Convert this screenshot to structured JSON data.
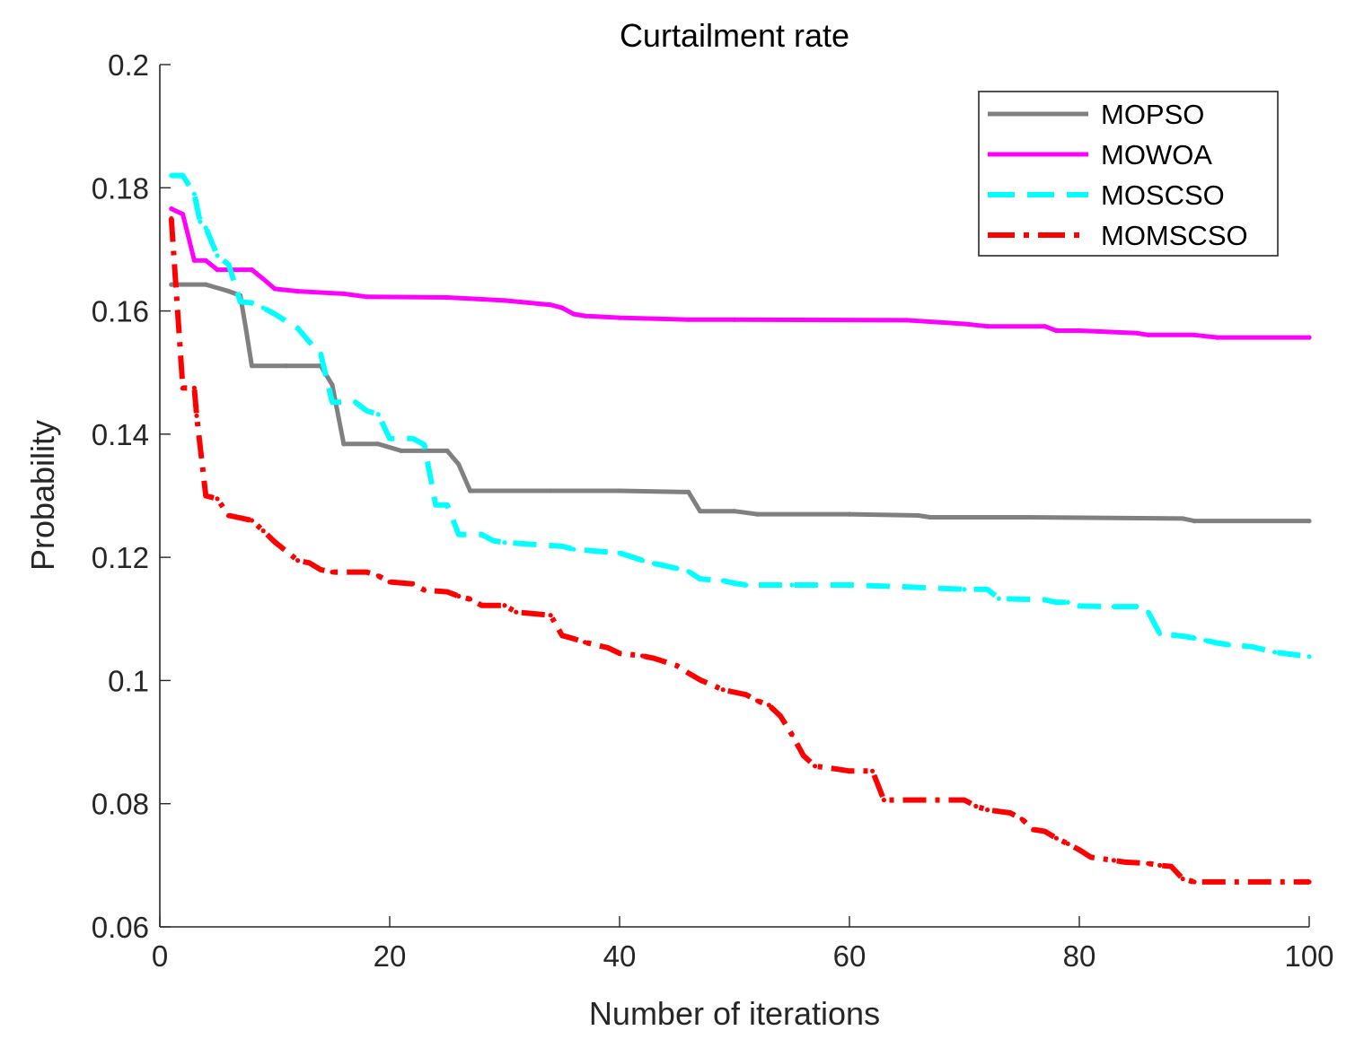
{
  "chart_data": {
    "type": "line",
    "title": "Curtailment rate",
    "xlabel": "Number of iterations",
    "ylabel": "Probability",
    "xlim": [
      0,
      100
    ],
    "ylim": [
      0.06,
      0.2
    ],
    "xticks": [
      0,
      20,
      40,
      60,
      80,
      100
    ],
    "xtick_labels": [
      "0",
      "20",
      "40",
      "60",
      "80",
      "100"
    ],
    "yticks": [
      0.06,
      0.08,
      0.1,
      0.12,
      0.14,
      0.16,
      0.18,
      0.2
    ],
    "ytick_labels": [
      "0.06",
      "0.08",
      "0.1",
      "0.12",
      "0.14",
      "0.16",
      "0.18",
      "0.2"
    ],
    "legend_position": "top-right",
    "series": [
      {
        "name": "MOPSO",
        "color": "#808080",
        "style": "solid",
        "x": [
          1,
          4,
          6,
          7,
          7.5,
          8,
          11,
          14,
          15,
          16,
          19,
          21,
          25,
          26,
          27,
          34,
          40,
          46,
          47,
          50,
          52,
          60,
          66,
          67,
          75,
          89,
          90,
          100
        ],
        "y": [
          0.1643,
          0.1643,
          0.1632,
          0.1625,
          0.157,
          0.1511,
          0.1511,
          0.1511,
          0.148,
          0.1384,
          0.1384,
          0.1373,
          0.1373,
          0.1351,
          0.1308,
          0.1308,
          0.1308,
          0.1306,
          0.1275,
          0.1275,
          0.127,
          0.127,
          0.1268,
          0.1265,
          0.1265,
          0.1263,
          0.1259,
          0.1259
        ]
      },
      {
        "name": "MOWOA",
        "color": "#ff00ff",
        "style": "solid",
        "x": [
          1,
          2,
          3,
          4,
          5,
          8,
          9,
          10,
          12,
          16,
          18,
          25,
          28,
          30,
          34,
          35,
          36,
          37,
          40,
          46,
          50,
          65,
          70,
          72,
          77,
          78,
          80,
          85,
          86,
          90,
          92,
          100
        ],
        "y": [
          0.1766,
          0.1757,
          0.1682,
          0.1682,
          0.1667,
          0.1667,
          0.1652,
          0.1636,
          0.1632,
          0.1628,
          0.1623,
          0.1622,
          0.1619,
          0.1617,
          0.161,
          0.1605,
          0.1595,
          0.1592,
          0.1589,
          0.1586,
          0.1586,
          0.1585,
          0.1579,
          0.1575,
          0.1575,
          0.1568,
          0.1568,
          0.1564,
          0.1561,
          0.1561,
          0.1557,
          0.1557
        ]
      },
      {
        "name": "MOSCSO",
        "color": "#00ffff",
        "style": "dashed",
        "x": [
          1,
          2,
          3,
          3.5,
          4,
          5,
          6,
          7,
          8,
          9,
          10,
          12,
          13,
          14,
          15,
          17,
          18,
          19,
          20,
          22,
          23,
          24,
          25,
          26,
          28,
          29,
          30,
          35,
          36,
          40,
          42,
          43,
          45,
          46,
          47,
          49,
          50,
          51,
          55,
          60,
          65,
          70,
          72,
          73,
          77,
          78,
          79,
          80,
          83,
          85,
          86,
          87,
          89,
          90,
          91,
          92,
          93,
          95,
          97,
          100
        ],
        "y": [
          0.182,
          0.182,
          0.179,
          0.1745,
          0.1735,
          0.169,
          0.1675,
          0.1615,
          0.1613,
          0.1605,
          0.1595,
          0.1572,
          0.155,
          0.153,
          0.1452,
          0.1452,
          0.1438,
          0.1432,
          0.1393,
          0.1393,
          0.1383,
          0.1285,
          0.1285,
          0.1237,
          0.1237,
          0.1227,
          0.1224,
          0.1218,
          0.1213,
          0.1207,
          0.1195,
          0.119,
          0.1182,
          0.1177,
          0.1165,
          0.1162,
          0.1158,
          0.1155,
          0.1155,
          0.1155,
          0.1152,
          0.1148,
          0.1148,
          0.1133,
          0.1131,
          0.1127,
          0.1127,
          0.1121,
          0.112,
          0.112,
          0.1111,
          0.1076,
          0.1072,
          0.1069,
          0.1065,
          0.1061,
          0.1058,
          0.1055,
          0.1046,
          0.1039
        ]
      },
      {
        "name": "MOMSCSO",
        "color": "#ff0000",
        "style": "dash-dot",
        "x": [
          1,
          2,
          3,
          3.2,
          4,
          5,
          6,
          8,
          9,
          10,
          12,
          13,
          14,
          15,
          18,
          19,
          20,
          22,
          23,
          25,
          26,
          27,
          28,
          30,
          31,
          34,
          35,
          36,
          37,
          39,
          40,
          42,
          43,
          45,
          46,
          47,
          49,
          50,
          51,
          52,
          53,
          54,
          55,
          56,
          57,
          59,
          60,
          62,
          63,
          65,
          70,
          71,
          72,
          74,
          75,
          76,
          77,
          78,
          79,
          80,
          81,
          83,
          84,
          86,
          87,
          88,
          89,
          90,
          100
        ],
        "y": [
          0.175,
          0.1475,
          0.1475,
          0.143,
          0.13,
          0.1295,
          0.1268,
          0.126,
          0.1243,
          0.1225,
          0.1195,
          0.1191,
          0.118,
          0.1176,
          0.1176,
          0.117,
          0.116,
          0.1157,
          0.1147,
          0.1144,
          0.1137,
          0.1132,
          0.1122,
          0.1122,
          0.1111,
          0.1106,
          0.1073,
          0.1068,
          0.1062,
          0.1053,
          0.1044,
          0.104,
          0.1036,
          0.1024,
          0.1012,
          0.1001,
          0.0985,
          0.0981,
          0.0977,
          0.0967,
          0.096,
          0.0942,
          0.0912,
          0.0878,
          0.0861,
          0.0856,
          0.0853,
          0.0853,
          0.0806,
          0.0806,
          0.0806,
          0.0796,
          0.079,
          0.0785,
          0.0775,
          0.0758,
          0.0755,
          0.0744,
          0.0735,
          0.0725,
          0.0713,
          0.0708,
          0.0705,
          0.0703,
          0.07,
          0.0698,
          0.0678,
          0.0673,
          0.0673
        ]
      }
    ]
  }
}
